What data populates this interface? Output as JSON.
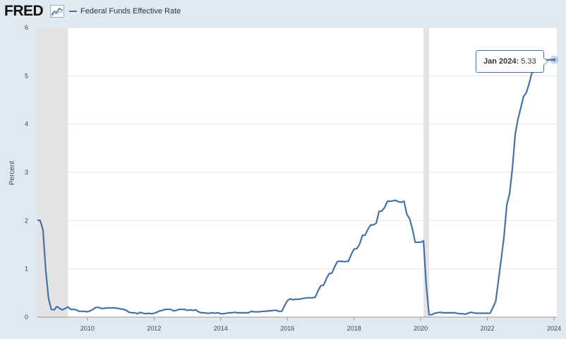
{
  "header": {
    "logo_text": "FRED",
    "legend_label": "Federal Funds Effective Rate"
  },
  "tooltip": {
    "date": "Jan 2024:",
    "value": "5.33"
  },
  "colors": {
    "series": "#4572a7",
    "recession": "#e3e3e3",
    "plot_background": "#ffffff",
    "page_background": "#e1e9f0"
  },
  "chart_data": {
    "type": "line",
    "title": "",
    "xlabel": "",
    "ylabel": "Percent",
    "ylim": [
      0,
      6
    ],
    "xlim": [
      "2008-07",
      "2024-02"
    ],
    "grid": true,
    "legend": "top-left",
    "yticks": [
      0,
      1,
      2,
      3,
      4,
      5,
      6
    ],
    "xticks": [
      "2010",
      "2012",
      "2014",
      "2016",
      "2018",
      "2020",
      "2022",
      "2024"
    ],
    "recessions": [
      {
        "start": "2008-07",
        "end": "2009-06"
      },
      {
        "start": "2020-02",
        "end": "2020-04"
      }
    ],
    "series": [
      {
        "name": "Federal Funds Effective Rate",
        "x": [
          "2008-07",
          "2008-08",
          "2008-09",
          "2008-10",
          "2008-11",
          "2008-12",
          "2009-01",
          "2009-02",
          "2009-03",
          "2009-04",
          "2009-05",
          "2009-06",
          "2009-07",
          "2009-08",
          "2009-09",
          "2009-10",
          "2009-11",
          "2009-12",
          "2010-01",
          "2010-02",
          "2010-03",
          "2010-04",
          "2010-05",
          "2010-06",
          "2010-07",
          "2010-08",
          "2010-09",
          "2010-10",
          "2010-11",
          "2010-12",
          "2011-01",
          "2011-02",
          "2011-03",
          "2011-04",
          "2011-05",
          "2011-06",
          "2011-07",
          "2011-08",
          "2011-09",
          "2011-10",
          "2011-11",
          "2011-12",
          "2012-01",
          "2012-02",
          "2012-03",
          "2012-04",
          "2012-05",
          "2012-06",
          "2012-07",
          "2012-08",
          "2012-09",
          "2012-10",
          "2012-11",
          "2012-12",
          "2013-01",
          "2013-02",
          "2013-03",
          "2013-04",
          "2013-05",
          "2013-06",
          "2013-07",
          "2013-08",
          "2013-09",
          "2013-10",
          "2013-11",
          "2013-12",
          "2014-01",
          "2014-02",
          "2014-03",
          "2014-04",
          "2014-05",
          "2014-06",
          "2014-07",
          "2014-08",
          "2014-09",
          "2014-10",
          "2014-11",
          "2014-12",
          "2015-01",
          "2015-02",
          "2015-03",
          "2015-04",
          "2015-05",
          "2015-06",
          "2015-07",
          "2015-08",
          "2015-09",
          "2015-10",
          "2015-11",
          "2015-12",
          "2016-01",
          "2016-02",
          "2016-03",
          "2016-04",
          "2016-05",
          "2016-06",
          "2016-07",
          "2016-08",
          "2016-09",
          "2016-10",
          "2016-11",
          "2016-12",
          "2017-01",
          "2017-02",
          "2017-03",
          "2017-04",
          "2017-05",
          "2017-06",
          "2017-07",
          "2017-08",
          "2017-09",
          "2017-10",
          "2017-11",
          "2017-12",
          "2018-01",
          "2018-02",
          "2018-03",
          "2018-04",
          "2018-05",
          "2018-06",
          "2018-07",
          "2018-08",
          "2018-09",
          "2018-10",
          "2018-11",
          "2018-12",
          "2019-01",
          "2019-02",
          "2019-03",
          "2019-04",
          "2019-05",
          "2019-06",
          "2019-07",
          "2019-08",
          "2019-09",
          "2019-10",
          "2019-11",
          "2019-12",
          "2020-01",
          "2020-02",
          "2020-03",
          "2020-04",
          "2020-05",
          "2020-06",
          "2020-07",
          "2020-08",
          "2020-09",
          "2020-10",
          "2020-11",
          "2020-12",
          "2021-01",
          "2021-02",
          "2021-03",
          "2021-04",
          "2021-05",
          "2021-06",
          "2021-07",
          "2021-08",
          "2021-09",
          "2021-10",
          "2021-11",
          "2021-12",
          "2022-01",
          "2022-02",
          "2022-03",
          "2022-04",
          "2022-05",
          "2022-06",
          "2022-07",
          "2022-08",
          "2022-09",
          "2022-10",
          "2022-11",
          "2022-12",
          "2023-01",
          "2023-02",
          "2023-03",
          "2023-04",
          "2023-05",
          "2023-06",
          "2023-07",
          "2023-08",
          "2023-09",
          "2023-10",
          "2023-11",
          "2023-12",
          "2024-01"
        ],
        "values": [
          2.01,
          2.0,
          1.81,
          0.97,
          0.39,
          0.16,
          0.15,
          0.22,
          0.18,
          0.15,
          0.18,
          0.21,
          0.16,
          0.16,
          0.15,
          0.12,
          0.12,
          0.12,
          0.11,
          0.13,
          0.16,
          0.2,
          0.2,
          0.18,
          0.18,
          0.19,
          0.19,
          0.19,
          0.19,
          0.18,
          0.17,
          0.16,
          0.14,
          0.1,
          0.09,
          0.09,
          0.07,
          0.1,
          0.08,
          0.07,
          0.08,
          0.07,
          0.08,
          0.1,
          0.13,
          0.14,
          0.16,
          0.16,
          0.16,
          0.13,
          0.14,
          0.16,
          0.16,
          0.16,
          0.14,
          0.15,
          0.14,
          0.15,
          0.11,
          0.09,
          0.09,
          0.08,
          0.08,
          0.09,
          0.08,
          0.09,
          0.07,
          0.07,
          0.08,
          0.09,
          0.09,
          0.1,
          0.09,
          0.09,
          0.09,
          0.09,
          0.09,
          0.12,
          0.11,
          0.11,
          0.11,
          0.12,
          0.12,
          0.13,
          0.13,
          0.14,
          0.14,
          0.12,
          0.12,
          0.24,
          0.34,
          0.38,
          0.36,
          0.37,
          0.37,
          0.38,
          0.39,
          0.4,
          0.4,
          0.4,
          0.41,
          0.54,
          0.65,
          0.66,
          0.79,
          0.9,
          0.91,
          1.04,
          1.15,
          1.16,
          1.15,
          1.15,
          1.16,
          1.3,
          1.41,
          1.42,
          1.51,
          1.69,
          1.7,
          1.82,
          1.91,
          1.91,
          1.95,
          2.19,
          2.2,
          2.27,
          2.4,
          2.4,
          2.41,
          2.42,
          2.39,
          2.38,
          2.4,
          2.13,
          2.04,
          1.83,
          1.55,
          1.55,
          1.55,
          1.58,
          0.65,
          0.05,
          0.05,
          0.08,
          0.09,
          0.1,
          0.09,
          0.09,
          0.09,
          0.09,
          0.09,
          0.08,
          0.07,
          0.07,
          0.06,
          0.08,
          0.1,
          0.09,
          0.08,
          0.08,
          0.08,
          0.08,
          0.08,
          0.08,
          0.2,
          0.33,
          0.77,
          1.21,
          1.68,
          2.33,
          2.56,
          3.08,
          3.78,
          4.1,
          4.33,
          4.57,
          4.65,
          4.83,
          5.06,
          5.08,
          5.12,
          5.33,
          5.33,
          5.33,
          5.33,
          5.33,
          5.33
        ]
      }
    ]
  }
}
